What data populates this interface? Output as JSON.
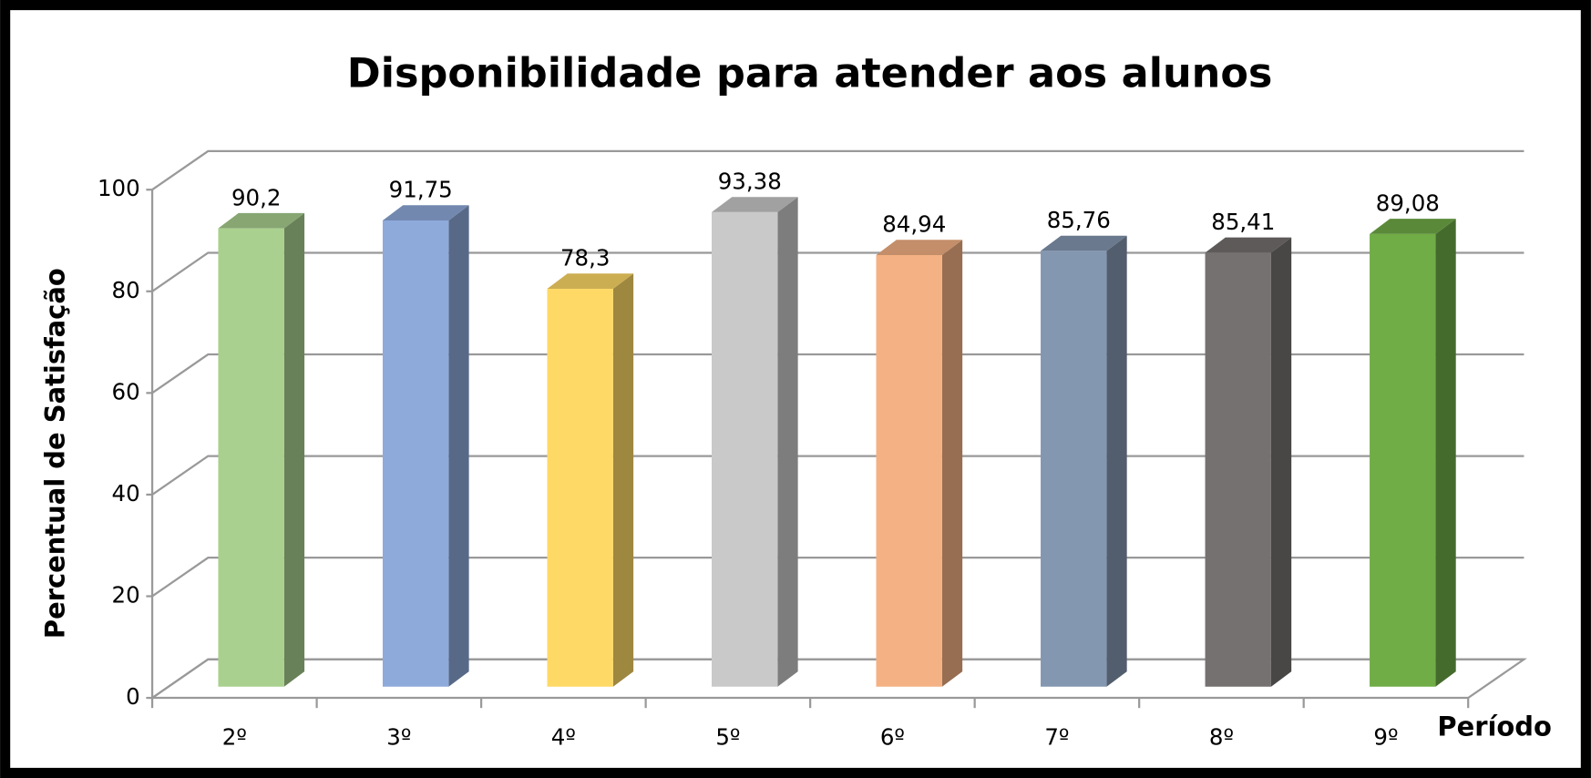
{
  "chart_data": {
    "type": "bar3d",
    "title": "Disponibilidade para atender aos alunos",
    "y_label": "Percentual de Satisfação",
    "x_label": "Período",
    "categories": [
      "2º",
      "3º",
      "4º",
      "5º",
      "6º",
      "7º",
      "8º",
      "9º"
    ],
    "values": [
      90.2,
      91.75,
      78.3,
      93.38,
      84.94,
      85.76,
      85.41,
      89.08
    ],
    "value_labels": [
      "90,2",
      "91,75",
      "78,3",
      "93,38",
      "84,94",
      "85,76",
      "85,41",
      "89,08"
    ],
    "colors": [
      "#a9d08e",
      "#8eaadb",
      "#ffd966",
      "#c9c9c9",
      "#f4b183",
      "#8497b0",
      "#767171",
      "#70ad47"
    ],
    "ylim": [
      0,
      100
    ],
    "yticks": [
      0,
      20,
      40,
      60,
      80,
      100
    ],
    "grid": true
  }
}
